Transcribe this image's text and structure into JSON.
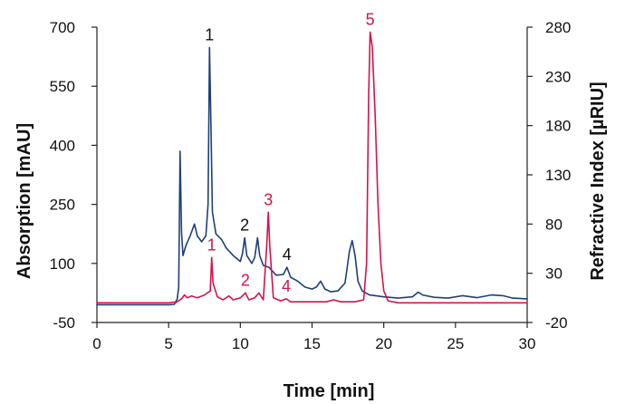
{
  "chart_data": {
    "type": "line",
    "xlabel": "Time [min]",
    "ylabel_left": "Absorption [mAU]",
    "ylabel_right": "Refractive Index [µRIU]",
    "xlim": [
      0,
      30
    ],
    "ylim_left": [
      -50,
      700
    ],
    "ylim_right": [
      -20,
      280
    ],
    "x_ticks": [
      0,
      5,
      10,
      15,
      20,
      25,
      30
    ],
    "y_left_ticks": [
      -50,
      100,
      250,
      400,
      550,
      700
    ],
    "y_right_ticks": [
      -20,
      30,
      80,
      130,
      180,
      230,
      280
    ],
    "grid": false,
    "legend": "none",
    "colors": {
      "uv": "#1f3f7a",
      "ri": "#d0154a"
    },
    "series": [
      {
        "axis": "left",
        "color": "#1f3f7a",
        "points": [
          [
            0,
            -5
          ],
          [
            5.0,
            -5
          ],
          [
            5.4,
            -4
          ],
          [
            5.6,
            10
          ],
          [
            5.7,
            40
          ],
          [
            5.8,
            385
          ],
          [
            5.9,
            180
          ],
          [
            6.0,
            120
          ],
          [
            6.2,
            145
          ],
          [
            6.5,
            170
          ],
          [
            6.8,
            200
          ],
          [
            7.0,
            170
          ],
          [
            7.3,
            155
          ],
          [
            7.6,
            170
          ],
          [
            7.75,
            250
          ],
          [
            7.85,
            648
          ],
          [
            7.95,
            450
          ],
          [
            8.05,
            230
          ],
          [
            8.3,
            175
          ],
          [
            8.7,
            160
          ],
          [
            9.0,
            140
          ],
          [
            9.5,
            120
          ],
          [
            10.0,
            105
          ],
          [
            10.15,
            125
          ],
          [
            10.3,
            165
          ],
          [
            10.45,
            120
          ],
          [
            10.8,
            100
          ],
          [
            11.0,
            115
          ],
          [
            11.2,
            165
          ],
          [
            11.35,
            120
          ],
          [
            11.6,
            95
          ],
          [
            12.0,
            90
          ],
          [
            12.5,
            70
          ],
          [
            13.0,
            72
          ],
          [
            13.25,
            90
          ],
          [
            13.5,
            65
          ],
          [
            14.0,
            55
          ],
          [
            14.5,
            40
          ],
          [
            15.0,
            35
          ],
          [
            15.3,
            40
          ],
          [
            15.6,
            55
          ],
          [
            15.9,
            35
          ],
          [
            16.3,
            28
          ],
          [
            16.8,
            30
          ],
          [
            17.3,
            50
          ],
          [
            17.6,
            130
          ],
          [
            17.8,
            158
          ],
          [
            18.0,
            120
          ],
          [
            18.2,
            55
          ],
          [
            18.5,
            30
          ],
          [
            19.0,
            20
          ],
          [
            20.0,
            15
          ],
          [
            21.0,
            12
          ],
          [
            22.0,
            15
          ],
          [
            22.4,
            27
          ],
          [
            22.7,
            20
          ],
          [
            23.5,
            14
          ],
          [
            24.5,
            12
          ],
          [
            25.5,
            18
          ],
          [
            26.5,
            13
          ],
          [
            27.5,
            20
          ],
          [
            28.3,
            18
          ],
          [
            29.0,
            12
          ],
          [
            30.0,
            10
          ]
        ]
      },
      {
        "axis": "right",
        "color": "#d0154a",
        "points": [
          [
            0,
            0
          ],
          [
            5.0,
            0
          ],
          [
            5.6,
            1
          ],
          [
            5.9,
            4
          ],
          [
            6.1,
            8
          ],
          [
            6.3,
            5
          ],
          [
            6.6,
            7
          ],
          [
            7.0,
            5
          ],
          [
            7.5,
            8
          ],
          [
            7.9,
            12
          ],
          [
            8.0,
            46
          ],
          [
            8.1,
            20
          ],
          [
            8.4,
            6
          ],
          [
            8.8,
            3
          ],
          [
            9.2,
            7
          ],
          [
            9.5,
            3
          ],
          [
            10.0,
            5
          ],
          [
            10.35,
            10
          ],
          [
            10.6,
            3
          ],
          [
            11.0,
            5
          ],
          [
            11.3,
            10
          ],
          [
            11.6,
            3
          ],
          [
            11.85,
            60
          ],
          [
            11.95,
            92
          ],
          [
            12.05,
            58
          ],
          [
            12.3,
            5
          ],
          [
            12.8,
            2
          ],
          [
            13.2,
            4
          ],
          [
            13.5,
            1
          ],
          [
            14.0,
            1
          ],
          [
            15.0,
            1
          ],
          [
            16.0,
            1
          ],
          [
            16.5,
            3
          ],
          [
            17.0,
            1
          ],
          [
            18.0,
            1
          ],
          [
            18.6,
            3
          ],
          [
            18.8,
            40
          ],
          [
            18.95,
            210
          ],
          [
            19.05,
            275
          ],
          [
            19.2,
            260
          ],
          [
            19.4,
            190
          ],
          [
            19.6,
            100
          ],
          [
            19.8,
            40
          ],
          [
            20.0,
            12
          ],
          [
            20.3,
            2
          ],
          [
            21.0,
            0
          ],
          [
            30.0,
            0
          ]
        ]
      }
    ],
    "peak_labels": [
      {
        "text": "1",
        "x": 7.85,
        "y": 648,
        "axis": "left",
        "color": "#111111"
      },
      {
        "text": "2",
        "x": 10.3,
        "y": 165,
        "axis": "left",
        "color": "#111111"
      },
      {
        "text": "4",
        "x": 13.25,
        "y": 90,
        "axis": "left",
        "color": "#111111"
      },
      {
        "text": "1",
        "x": 8.0,
        "y": 46,
        "axis": "right",
        "color": "#d0154a"
      },
      {
        "text": "2",
        "x": 10.35,
        "y": 10,
        "axis": "right",
        "color": "#d0154a"
      },
      {
        "text": "3",
        "x": 11.95,
        "y": 92,
        "axis": "right",
        "color": "#d0154a"
      },
      {
        "text": "4",
        "x": 13.2,
        "y": 4,
        "axis": "right",
        "color": "#d0154a"
      },
      {
        "text": "5",
        "x": 19.05,
        "y": 275,
        "axis": "right",
        "color": "#d0154a"
      }
    ]
  }
}
